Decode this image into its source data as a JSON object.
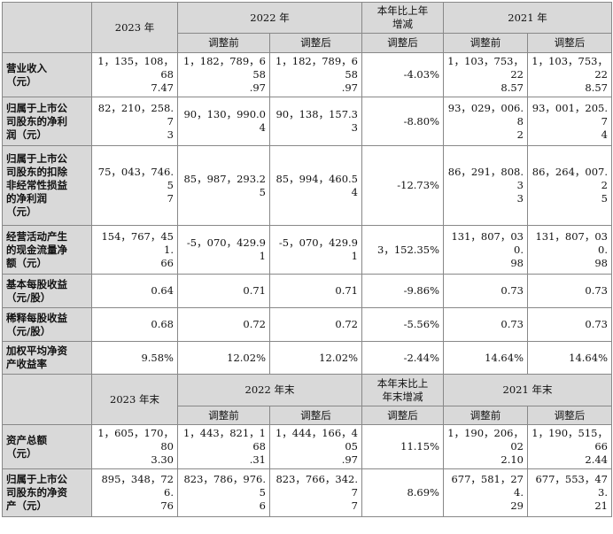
{
  "section1": {
    "head": {
      "year_2023": "2023 年",
      "year_2022": "2022 年",
      "change": "本年比上年\n增减",
      "year_2021": "2021 年",
      "sub": [
        "调整前",
        "调整后",
        "调整后",
        "调整前",
        "调整后"
      ]
    },
    "rows": [
      {
        "label": "营业收入\n（元）",
        "v": [
          "1，135，108，68\n7.47",
          "1，182，789，658\n.97",
          "1，182，789，658\n.97",
          "-4.03%",
          "1，103，753，22\n8.57",
          "1，103，753，22\n8.57"
        ]
      },
      {
        "label": "归属于上市公\n司股东的净利\n润（元）",
        "v": [
          "82，210，258.7\n3",
          "90，130，990.04",
          "90，138，157.33",
          "-8.80%",
          "93，029，006.8\n2",
          "93，001，205.7\n4"
        ]
      },
      {
        "label": "归属于上市公\n司股东的扣除\n非经常性损益\n的净利润\n（元）",
        "v": [
          "75，043，746.5\n7",
          "85，987，293.25",
          "85，994，460.54",
          "-12.73%",
          "86，291，808.3\n3",
          "86，264，007.2\n5"
        ]
      },
      {
        "label": "经营活动产生\n的现金流量净\n额（元）",
        "v": [
          "154，767，451.\n66",
          "-5，070，429.91",
          "-5，070，429.91",
          "3，152.35%",
          "131，807，030.\n98",
          "131，807，030.\n98"
        ]
      },
      {
        "label": "基本每股收益\n（元/股）",
        "v": [
          "0.64",
          "0.71",
          "0.71",
          "-9.86%",
          "0.73",
          "0.73"
        ]
      },
      {
        "label": "稀释每股收益\n（元/股）",
        "v": [
          "0.68",
          "0.72",
          "0.72",
          "-5.56%",
          "0.73",
          "0.73"
        ]
      },
      {
        "label": "加权平均净资\n产收益率",
        "v": [
          "9.58%",
          "12.02%",
          "12.02%",
          "-2.44%",
          "14.64%",
          "14.64%"
        ]
      }
    ]
  },
  "section2": {
    "head": {
      "year_2023": "2023 年末",
      "year_2022": "2022 年末",
      "change": "本年末比上\n年末增减",
      "year_2021": "2021 年末",
      "sub": [
        "调整前",
        "调整后",
        "调整后",
        "调整前",
        "调整后"
      ]
    },
    "rows": [
      {
        "label": "资产总额\n（元）",
        "v": [
          "1，605，170，80\n3.30",
          "1，443，821，168\n.31",
          "1，444，166，405\n.97",
          "11.15%",
          "1，190，206，02\n2.10",
          "1，190，515，66\n2.44"
        ]
      },
      {
        "label": "归属于上市公\n司股东的净资\n产（元）",
        "v": [
          "895，348，726.\n76",
          "823，786，976.5\n6",
          "823，766，342.7\n7",
          "8.69%",
          "677，581，274.\n29",
          "677，553，473.\n21"
        ]
      }
    ]
  }
}
